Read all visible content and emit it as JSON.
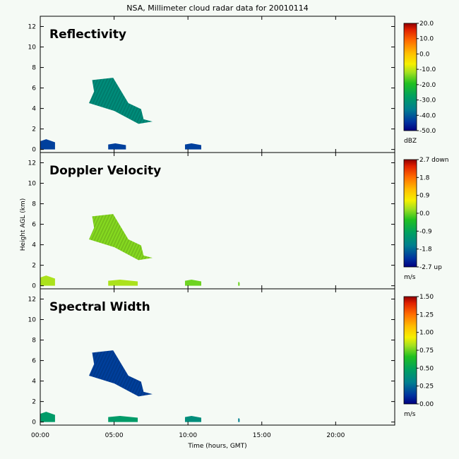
{
  "chart_data": {
    "type": "heatmap",
    "title": "NSA, Millimeter cloud radar data for 20010114",
    "xlabel": "Time (hours, GMT)",
    "ylabel": "Height AGL (km)",
    "x_ticks": [
      "00:00",
      "05:00",
      "10:00",
      "15:00",
      "20:00"
    ],
    "x_tick_hours": [
      0,
      5,
      10,
      15,
      20
    ],
    "xlim_hours": [
      0,
      24
    ],
    "y_ticks": [
      0,
      2,
      4,
      6,
      8,
      10,
      12
    ],
    "ylim_km": [
      -0.3,
      13
    ],
    "panels": [
      {
        "name": "Reflectivity",
        "colorbar_ticks": [
          "20.0",
          "10.0",
          "0.0",
          "-10.0",
          "-20.0",
          "-30.0",
          "-40.0",
          "-50.0"
        ],
        "colorbar_unit": "dBZ",
        "regions": [
          {
            "t0": 3.3,
            "t1": 7.6,
            "z0": 2.5,
            "z1": 7.0,
            "value_fraction": 0.25
          },
          {
            "t0": 0.0,
            "t1": 1.0,
            "z0": 0.0,
            "z1": 1.0,
            "value_fraction": 0.1
          },
          {
            "t0": 4.6,
            "t1": 5.8,
            "z0": 0.0,
            "z1": 0.6,
            "value_fraction": 0.1
          },
          {
            "t0": 9.8,
            "t1": 10.9,
            "z0": 0.0,
            "z1": 0.6,
            "value_fraction": 0.1
          }
        ]
      },
      {
        "name": "Doppler Velocity",
        "colorbar_ticks": [
          "2.7 down",
          "1.8",
          "0.9",
          "0.0",
          "-0.9",
          "-1.8",
          "-2.7 up"
        ],
        "colorbar_unit": "m/s",
        "regions": [
          {
            "t0": 3.3,
            "t1": 7.6,
            "z0": 2.5,
            "z1": 7.0,
            "value_fraction": 0.52
          },
          {
            "t0": 0.0,
            "t1": 1.0,
            "z0": 0.0,
            "z1": 1.0,
            "value_fraction": 0.55
          },
          {
            "t0": 4.6,
            "t1": 6.6,
            "z0": 0.0,
            "z1": 0.6,
            "value_fraction": 0.55
          },
          {
            "t0": 9.8,
            "t1": 10.9,
            "z0": 0.0,
            "z1": 0.6,
            "value_fraction": 0.5
          },
          {
            "t0": 13.4,
            "t1": 13.5,
            "z0": 0.0,
            "z1": 0.4,
            "value_fraction": 0.5
          }
        ]
      },
      {
        "name": "Spectral Width",
        "colorbar_ticks": [
          "1.50",
          "1.25",
          "1.00",
          "0.75",
          "0.50",
          "0.25",
          "0.00"
        ],
        "colorbar_unit": "m/s",
        "regions": [
          {
            "t0": 3.3,
            "t1": 7.6,
            "z0": 2.5,
            "z1": 7.0,
            "value_fraction": 0.1
          },
          {
            "t0": 0.0,
            "t1": 1.0,
            "z0": 0.0,
            "z1": 1.0,
            "value_fraction": 0.3
          },
          {
            "t0": 4.6,
            "t1": 6.6,
            "z0": 0.0,
            "z1": 0.6,
            "value_fraction": 0.3
          },
          {
            "t0": 9.8,
            "t1": 10.9,
            "z0": 0.0,
            "z1": 0.6,
            "value_fraction": 0.25
          },
          {
            "t0": 13.4,
            "t1": 13.5,
            "z0": 0.0,
            "z1": 0.4,
            "value_fraction": 0.2
          }
        ]
      }
    ]
  }
}
